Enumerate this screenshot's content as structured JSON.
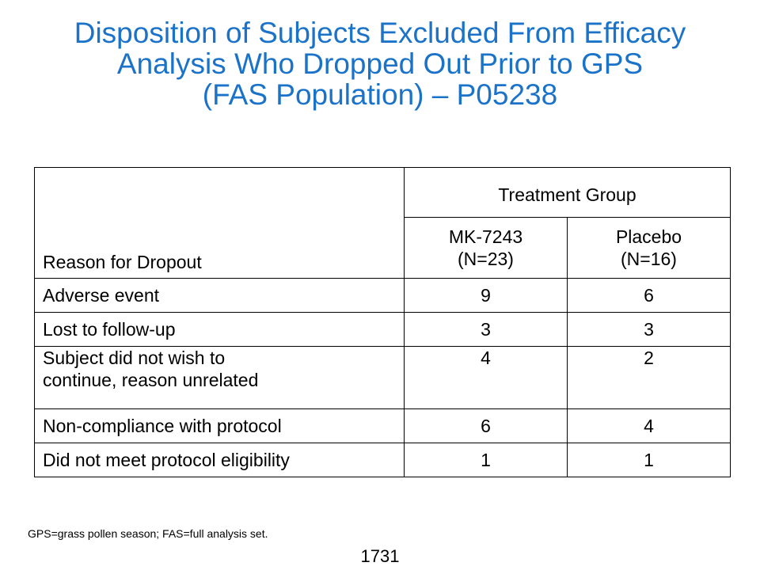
{
  "title": {
    "line1": "Disposition of Subjects Excluded From Efficacy",
    "line2": "Analysis Who Dropped Out Prior to GPS",
    "line3": "(FAS Population) – P05238"
  },
  "table": {
    "reason_header": "Reason for Dropout",
    "group_header": "Treatment Group",
    "arms": [
      {
        "name": "MK-7243",
        "n": "(N=23)"
      },
      {
        "name": "Placebo",
        "n": "(N=16)"
      }
    ],
    "rows": [
      {
        "reason": "Adverse event",
        "mk": "9",
        "placebo": "6"
      },
      {
        "reason": "Lost to follow-up",
        "mk": "3",
        "placebo": "3"
      },
      {
        "reason_line1": "Subject did not wish to",
        "reason_line2": "continue, reason unrelated",
        "mk": "4",
        "placebo": "2"
      },
      {
        "reason": "Non-compliance with protocol",
        "mk": "6",
        "placebo": "4"
      },
      {
        "reason": "Did not meet protocol eligibility",
        "mk": "1",
        "placebo": "1"
      }
    ]
  },
  "footnote": "GPS=grass pollen season; FAS=full analysis set.",
  "page_number": "1731",
  "colors": {
    "title": "#1a73c9",
    "header_rule": "#1f6fbf"
  }
}
